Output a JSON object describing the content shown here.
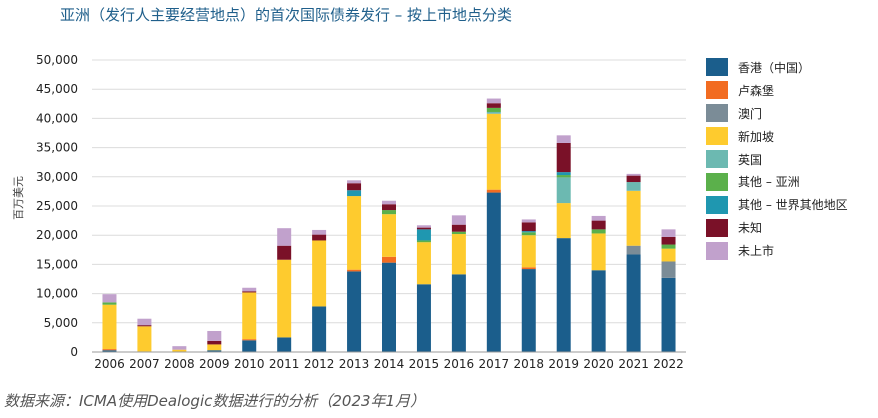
{
  "title": "亚洲（发行人主要经营地点）的首次国际债券发行 – 按上市地点分类",
  "source": "数据来源：ICMA使用Dealogic数据进行的分析（2023年1月）",
  "chart_data": {
    "type": "bar",
    "stacked": true,
    "title": "亚洲（发行人主要经营地点）的首次国际债券发行 – 按上市地点分类",
    "ylabel": "百万美元",
    "xlabel": "",
    "ylim": [
      0,
      50000
    ],
    "yticks": [
      0,
      5000,
      10000,
      15000,
      20000,
      25000,
      30000,
      35000,
      40000,
      45000,
      50000
    ],
    "ytick_labels": [
      "0",
      "5,000",
      "10,000",
      "15,000",
      "20,000",
      "25,000",
      "30,000",
      "35,000",
      "40,000",
      "45,000",
      "50,000"
    ],
    "grid": true,
    "legend_position": "right",
    "categories": [
      "2006",
      "2007",
      "2008",
      "2009",
      "2010",
      "2011",
      "2012",
      "2013",
      "2014",
      "2015",
      "2016",
      "2017",
      "2018",
      "2019",
      "2020",
      "2021",
      "2022"
    ],
    "series": [
      {
        "name": "香港（中国）",
        "color": "#1b5e8c",
        "values": [
          300,
          100,
          0,
          300,
          2000,
          2500,
          7800,
          13800,
          15300,
          11600,
          13300,
          27300,
          14200,
          19500,
          14000,
          16700,
          12700
        ]
      },
      {
        "name": "卢森堡",
        "color": "#f26c21",
        "values": [
          200,
          0,
          0,
          0,
          200,
          0,
          0,
          300,
          1000,
          0,
          0,
          500,
          300,
          0,
          0,
          0,
          0
        ]
      },
      {
        "name": "澳门",
        "color": "#7b8c97",
        "values": [
          0,
          0,
          0,
          0,
          0,
          0,
          0,
          0,
          0,
          0,
          0,
          0,
          0,
          0,
          0,
          1500,
          2800
        ]
      },
      {
        "name": "新加坡",
        "color": "#fecb2e",
        "values": [
          7600,
          4300,
          400,
          1000,
          8000,
          13300,
          11300,
          12600,
          7300,
          7200,
          6900,
          13000,
          5500,
          6000,
          6300,
          9400,
          2200
        ]
      },
      {
        "name": "英国",
        "color": "#6cb9b1",
        "values": [
          0,
          0,
          0,
          0,
          0,
          0,
          0,
          0,
          0,
          0,
          0,
          300,
          0,
          4400,
          0,
          1500,
          0
        ]
      },
      {
        "name": "其他 – 亚洲",
        "color": "#5bb04b",
        "values": [
          400,
          0,
          0,
          0,
          0,
          0,
          0,
          0,
          700,
          300,
          400,
          700,
          500,
          400,
          700,
          0,
          700
        ]
      },
      {
        "name": "其他 – 世界其他地区",
        "color": "#1f97b0",
        "values": [
          0,
          0,
          0,
          0,
          0,
          0,
          0,
          1000,
          0,
          1900,
          0,
          0,
          200,
          500,
          0,
          0,
          0
        ]
      },
      {
        "name": "未知",
        "color": "#7a1128",
        "values": [
          0,
          200,
          0,
          600,
          200,
          2400,
          1000,
          1200,
          1000,
          300,
          1200,
          800,
          1500,
          5000,
          1500,
          1100,
          1300
        ]
      },
      {
        "name": "未上市",
        "color": "#c1a1cc",
        "values": [
          1400,
          1100,
          600,
          1700,
          600,
          3000,
          800,
          500,
          600,
          400,
          1600,
          800,
          500,
          1300,
          800,
          300,
          1300
        ]
      }
    ]
  }
}
